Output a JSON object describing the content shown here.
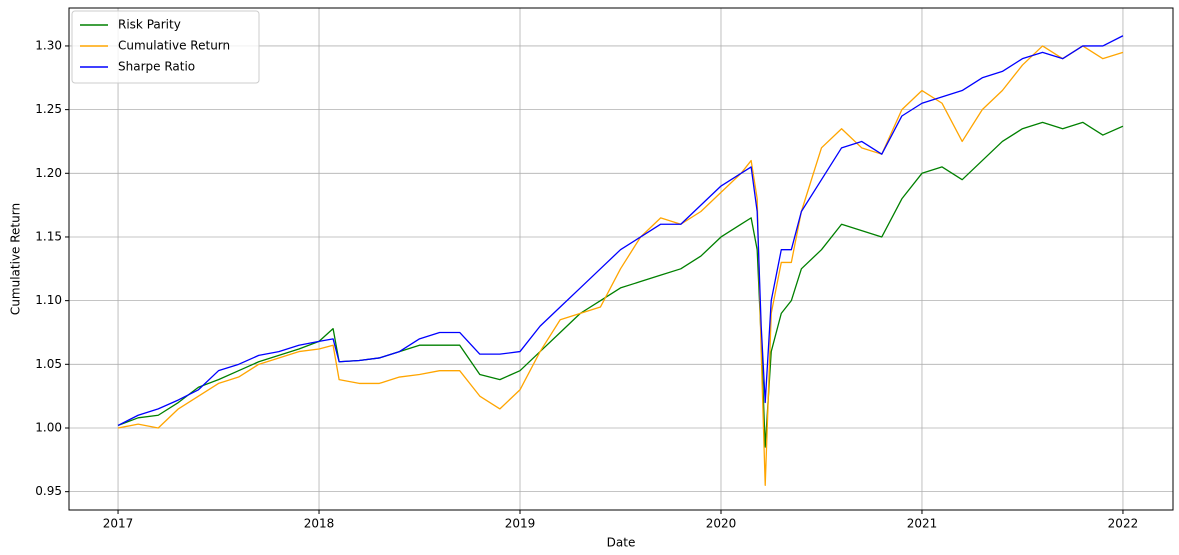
{
  "chart_data": {
    "type": "line",
    "xlabel": "Date",
    "ylabel": "Cumulative Return",
    "x": [
      2017.0,
      2017.1,
      2017.2,
      2017.3,
      2017.4,
      2017.5,
      2017.6,
      2017.7,
      2017.8,
      2017.9,
      2018.0,
      2018.07,
      2018.1,
      2018.2,
      2018.3,
      2018.4,
      2018.5,
      2018.6,
      2018.7,
      2018.8,
      2018.9,
      2019.0,
      2019.1,
      2019.2,
      2019.3,
      2019.4,
      2019.5,
      2019.6,
      2019.7,
      2019.8,
      2019.9,
      2020.0,
      2020.1,
      2020.15,
      2020.18,
      2020.2,
      2020.22,
      2020.25,
      2020.3,
      2020.35,
      2020.4,
      2020.5,
      2020.6,
      2020.7,
      2020.8,
      2020.9,
      2021.0,
      2021.1,
      2021.2,
      2021.3,
      2021.4,
      2021.5,
      2021.6,
      2021.7,
      2021.8,
      2021.9,
      2022.0
    ],
    "series": [
      {
        "name": "Risk Parity",
        "color": "#008000",
        "values": [
          1.002,
          1.008,
          1.01,
          1.02,
          1.032,
          1.038,
          1.045,
          1.052,
          1.057,
          1.062,
          1.068,
          1.078,
          1.052,
          1.053,
          1.055,
          1.06,
          1.065,
          1.065,
          1.065,
          1.042,
          1.038,
          1.045,
          1.06,
          1.075,
          1.09,
          1.1,
          1.11,
          1.115,
          1.12,
          1.125,
          1.135,
          1.15,
          1.16,
          1.165,
          1.14,
          1.07,
          0.985,
          1.06,
          1.09,
          1.1,
          1.125,
          1.14,
          1.16,
          1.155,
          1.15,
          1.18,
          1.2,
          1.205,
          1.195,
          1.21,
          1.225,
          1.235,
          1.24,
          1.235,
          1.24,
          1.23,
          1.237
        ]
      },
      {
        "name": "Cumulative Return",
        "color": "#ffa500",
        "values": [
          1.0,
          1.003,
          1.0,
          1.015,
          1.025,
          1.035,
          1.04,
          1.05,
          1.055,
          1.06,
          1.062,
          1.065,
          1.038,
          1.035,
          1.035,
          1.04,
          1.042,
          1.045,
          1.045,
          1.025,
          1.015,
          1.03,
          1.06,
          1.085,
          1.09,
          1.095,
          1.125,
          1.15,
          1.165,
          1.16,
          1.17,
          1.185,
          1.2,
          1.21,
          1.18,
          1.06,
          0.955,
          1.09,
          1.13,
          1.13,
          1.17,
          1.22,
          1.235,
          1.22,
          1.215,
          1.25,
          1.265,
          1.255,
          1.225,
          1.25,
          1.265,
          1.285,
          1.3,
          1.29,
          1.3,
          1.29,
          1.295
        ]
      },
      {
        "name": "Sharpe Ratio",
        "color": "#0000ff",
        "values": [
          1.002,
          1.01,
          1.015,
          1.022,
          1.03,
          1.045,
          1.05,
          1.057,
          1.06,
          1.065,
          1.068,
          1.07,
          1.052,
          1.053,
          1.055,
          1.06,
          1.07,
          1.075,
          1.075,
          1.058,
          1.058,
          1.06,
          1.08,
          1.095,
          1.11,
          1.125,
          1.14,
          1.15,
          1.16,
          1.16,
          1.175,
          1.19,
          1.2,
          1.205,
          1.17,
          1.08,
          1.02,
          1.1,
          1.14,
          1.14,
          1.17,
          1.195,
          1.22,
          1.225,
          1.215,
          1.245,
          1.255,
          1.26,
          1.265,
          1.275,
          1.28,
          1.29,
          1.295,
          1.29,
          1.3,
          1.3,
          1.308
        ]
      }
    ],
    "xlim": [
      2016.756,
      2022.249
    ],
    "xticks": [
      2017,
      2018,
      2019,
      2020,
      2021,
      2022
    ],
    "ylim": [
      0.9356,
      1.3298
    ],
    "yticks": [
      {
        "value": 0.95,
        "label": "0.95"
      },
      {
        "value": 1.0,
        "label": "1.00"
      },
      {
        "value": 1.05,
        "label": "1.05"
      },
      {
        "value": 1.1,
        "label": "1.10"
      },
      {
        "value": 1.15,
        "label": "1.15"
      },
      {
        "value": 1.2,
        "label": "1.20"
      },
      {
        "value": 1.25,
        "label": "1.25"
      },
      {
        "value": 1.3,
        "label": "1.30"
      }
    ],
    "grid": true,
    "legend": "upper-left"
  }
}
